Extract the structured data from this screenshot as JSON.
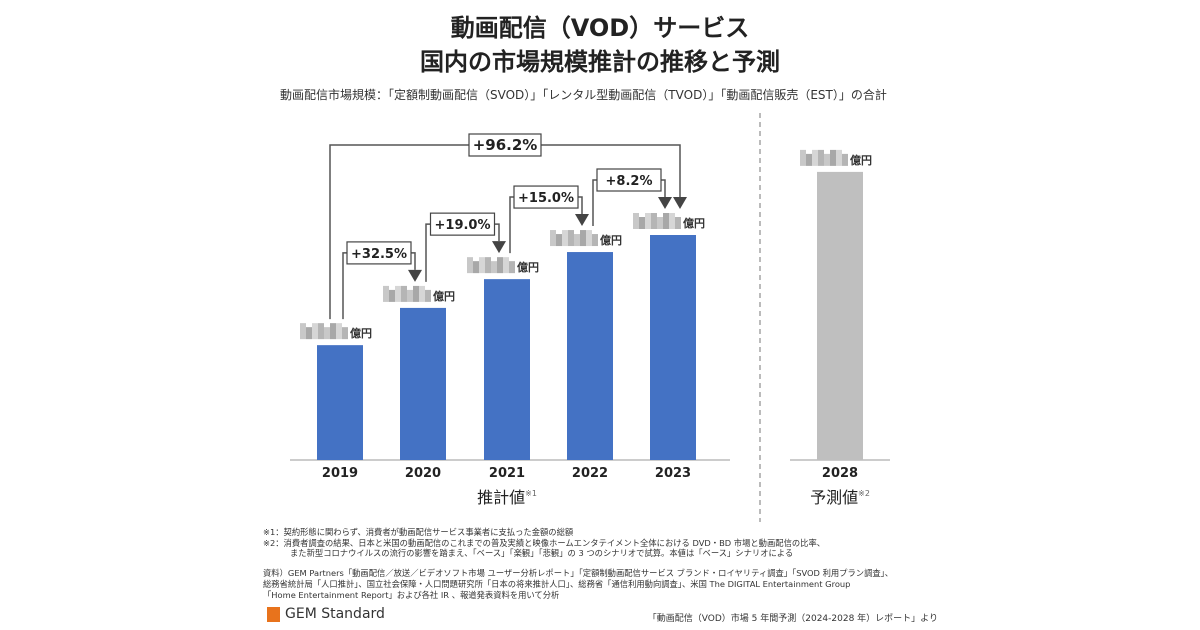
{
  "title_line1": "動画配信（VOD）サービス",
  "title_line2": "国内の市場規模推計の推移と予測",
  "subtitle": "動画配信市場規模：「定額制動画配信（SVOD）」「レンタル型動画配信（TVOD）」「動画配信販売（EST）」の合計",
  "chart_data": {
    "type": "bar",
    "categories": [
      "2019",
      "2020",
      "2021",
      "2022",
      "2023",
      "2028"
    ],
    "values": [
      2930,
      3880,
      4614,
      5305,
      5740,
      7350
    ],
    "value_unit": "億円",
    "value_labels_obscured": true,
    "colors": {
      "estimate": "#4472c4",
      "forecast": "#bfbfbf"
    },
    "groups": [
      {
        "label": "推計値",
        "note": "※1",
        "categories": [
          "2019",
          "2020",
          "2021",
          "2022",
          "2023"
        ]
      },
      {
        "label": "予測値",
        "note": "※2",
        "categories": [
          "2028"
        ]
      }
    ],
    "growth_annotations": [
      {
        "from": "2019",
        "to": "2020",
        "label": "+32.5%"
      },
      {
        "from": "2020",
        "to": "2021",
        "label": "+19.0%"
      },
      {
        "from": "2021",
        "to": "2022",
        "label": "+15.0%"
      },
      {
        "from": "2022",
        "to": "2023",
        "label": "+8.2%"
      },
      {
        "from": "2019",
        "to": "2023",
        "label": "+96.2%"
      }
    ],
    "grid": false
  },
  "notes": [
    "※1：契約形態に関わらず、消費者が動画配信サービス事業者に支払った金額の総額",
    "※2：消費者調査の結果、日本と米国の動画配信のこれまでの普及実績と映像ホームエンタテイメント全体における DVD・BD 市場と動画配信の比率、",
    "また新型コロナウイルスの流行の影響を踏まえ、「ベース」「楽観」「悲観」の 3 つのシナリオで試算。本値は「ベース」シナリオによる"
  ],
  "sources": [
    "資料）GEM Partners「動画配信／放送／ビデオソフト市場 ユーザー分析レポート」「定額制動画配信サービス ブランド・ロイヤリティ調査」「SVOD 利用プラン調査」、",
    "総務省統計局「人口推計」、国立社会保障・人口問題研究所「日本の将来推計人口」、総務省「通信利用動向調査」、米国 The DIGITAL Entertainment Group",
    "「Home Entertainment Report」および各社 IR 、報道発表資料を用いて分析"
  ],
  "logo": "GEM Standard",
  "reference": "「動画配信（VOD）市場 5 年間予測（2024-2028 年）レポート」より"
}
